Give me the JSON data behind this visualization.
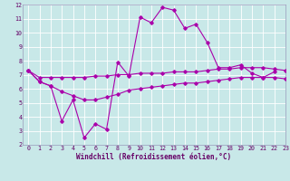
{
  "xlabel": "Windchill (Refroidissement éolien,°C)",
  "background_color": "#c8e8e8",
  "grid_color": "#ffffff",
  "line_color": "#aa00aa",
  "x_hours": [
    0,
    1,
    2,
    3,
    4,
    5,
    6,
    7,
    8,
    9,
    10,
    11,
    12,
    13,
    14,
    15,
    16,
    17,
    18,
    19,
    20,
    21,
    22,
    23
  ],
  "series_main": [
    7.3,
    6.5,
    6.2,
    3.7,
    5.2,
    2.5,
    3.5,
    3.1,
    7.9,
    6.9,
    11.1,
    10.7,
    11.8,
    11.6,
    10.3,
    10.6,
    9.3,
    7.5,
    7.5,
    7.7,
    7.1,
    6.8,
    7.2,
    null
  ],
  "series_upper": [
    7.3,
    6.8,
    6.8,
    6.8,
    6.8,
    6.8,
    6.9,
    6.9,
    7.0,
    7.0,
    7.1,
    7.1,
    7.1,
    7.2,
    7.2,
    7.2,
    7.3,
    7.4,
    7.4,
    7.5,
    7.5,
    7.5,
    7.4,
    7.3
  ],
  "series_lower": [
    7.3,
    6.5,
    6.2,
    5.8,
    5.5,
    5.2,
    5.2,
    5.4,
    5.6,
    5.9,
    6.0,
    6.1,
    6.2,
    6.3,
    6.4,
    6.4,
    6.5,
    6.6,
    6.7,
    6.8,
    6.8,
    6.8,
    6.8,
    6.7
  ],
  "ylim": [
    2,
    12
  ],
  "xlim": [
    -0.5,
    23
  ],
  "yticks": [
    2,
    3,
    4,
    5,
    6,
    7,
    8,
    9,
    10,
    11,
    12
  ],
  "xticks": [
    0,
    1,
    2,
    3,
    4,
    5,
    6,
    7,
    8,
    9,
    10,
    11,
    12,
    13,
    14,
    15,
    16,
    17,
    18,
    19,
    20,
    21,
    22,
    23
  ]
}
